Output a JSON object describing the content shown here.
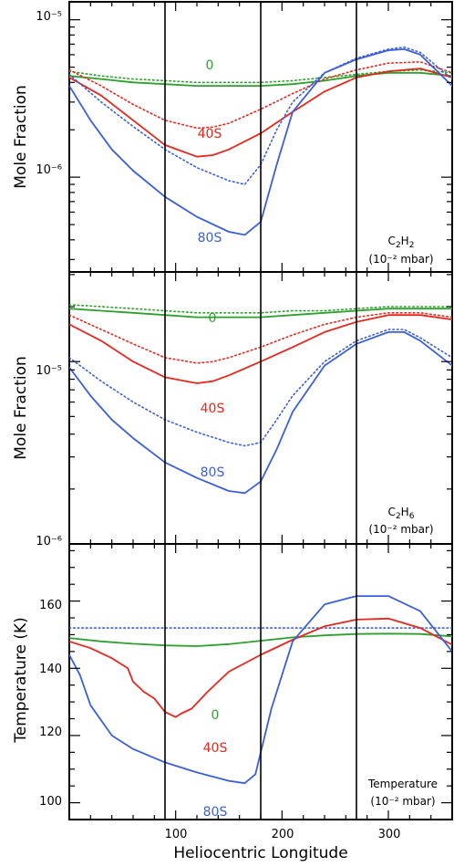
{
  "chart_data": [
    {
      "type": "line",
      "species_label": "C2H2",
      "note_main": "C",
      "note_sub1": "2",
      "note_mid": "H",
      "note_sub2": "2",
      "note_line2": "(10⁻² mbar)",
      "ylabel": "Mole Fraction",
      "yscale": "log",
      "ylim": [
        2.5e-07,
        1.3e-05
      ],
      "xlim": [
        0,
        360
      ],
      "yticks": [
        1e-06,
        1e-05
      ],
      "ytick_labels": [
        "10⁻⁶",
        "10⁻⁵"
      ],
      "series": [
        {
          "name": "0",
          "style": "solid",
          "color": "#2ca02c",
          "x": [
            0,
            30,
            60,
            90,
            120,
            150,
            180,
            210,
            240,
            270,
            300,
            330,
            360
          ],
          "values": [
            4.4e-06,
            4.2e-06,
            4e-06,
            3.9e-06,
            3.8e-06,
            3.8e-06,
            3.8e-06,
            3.9e-06,
            4.1e-06,
            4.4e-06,
            4.6e-06,
            4.6e-06,
            4.4e-06
          ]
        },
        {
          "name": "",
          "style": "dotted",
          "color": "#2ca02c",
          "x": [
            0,
            30,
            60,
            90,
            120,
            150,
            180,
            210,
            240,
            270,
            300,
            330,
            360
          ],
          "values": [
            4.7e-06,
            4.4e-06,
            4.2e-06,
            4.1e-06,
            4e-06,
            4e-06,
            4e-06,
            4.1e-06,
            4.3e-06,
            4.5e-06,
            4.7e-06,
            4.8e-06,
            4.6e-06
          ]
        },
        {
          "name": "40S",
          "style": "solid",
          "color": "#e8261c",
          "x": [
            0,
            30,
            60,
            90,
            120,
            135,
            150,
            180,
            210,
            240,
            270,
            300,
            330,
            360
          ],
          "values": [
            4.3e-06,
            3.3e-06,
            2.3e-06,
            1.6e-06,
            1.35e-06,
            1.38e-06,
            1.5e-06,
            1.9e-06,
            2.6e-06,
            3.5e-06,
            4.3e-06,
            4.7e-06,
            4.9e-06,
            4.3e-06
          ]
        },
        {
          "name": "",
          "style": "dotted",
          "color": "#e8261c",
          "x": [
            0,
            30,
            60,
            90,
            120,
            135,
            150,
            180,
            210,
            240,
            270,
            300,
            330,
            360
          ],
          "values": [
            4.8e-06,
            3.8e-06,
            2.9e-06,
            2.3e-06,
            2.05e-06,
            2.08e-06,
            2.2e-06,
            2.7e-06,
            3.4e-06,
            4.2e-06,
            4.8e-06,
            5.3e-06,
            5.4e-06,
            4.6e-06
          ]
        },
        {
          "name": "80S",
          "style": "solid",
          "color": "#3a5fdc",
          "x": [
            0,
            20,
            40,
            60,
            90,
            120,
            150,
            165,
            180,
            195,
            210,
            240,
            270,
            300,
            315,
            330,
            360
          ],
          "values": [
            3.8e-06,
            2.3e-06,
            1.5e-06,
            1.1e-06,
            7.5e-07,
            5.6e-07,
            4.5e-07,
            4.3e-07,
            5.2e-07,
            1.2e-06,
            2.6e-06,
            4.6e-06,
            5.6e-06,
            6.4e-06,
            6.5e-06,
            6e-06,
            3.8e-06
          ]
        },
        {
          "name": "",
          "style": "dotted",
          "color": "#3a5fdc",
          "x": [
            0,
            30,
            60,
            90,
            120,
            150,
            165,
            180,
            195,
            210,
            240,
            270,
            300,
            315,
            330,
            360
          ],
          "values": [
            4.5e-06,
            3e-06,
            2.1e-06,
            1.5e-06,
            1.15e-06,
            9.5e-07,
            9e-07,
            1.2e-06,
            2e-06,
            3e-06,
            4.6e-06,
            5.7e-06,
            6.5e-06,
            6.7e-06,
            6.2e-06,
            4.2e-06
          ]
        }
      ]
    },
    {
      "type": "line",
      "note_main": "C",
      "note_sub1": "2",
      "note_mid": "H",
      "note_sub2": "6",
      "note_line2": "(10⁻² mbar)",
      "ylabel": "Mole Fraction",
      "yscale": "log",
      "ylim": [
        1e-06,
        3.1e-05
      ],
      "xlim": [
        0,
        360
      ],
      "yticks": [
        1e-06,
        1e-05
      ],
      "ytick_labels": [
        "10⁻⁶",
        "10⁻⁵"
      ],
      "series": [
        {
          "name": "0",
          "style": "solid",
          "color": "#2ca02c",
          "x": [
            0,
            30,
            60,
            90,
            120,
            150,
            180,
            210,
            240,
            270,
            300,
            330,
            360
          ],
          "values": [
            1.95e-05,
            1.9e-05,
            1.85e-05,
            1.8e-05,
            1.75e-05,
            1.75e-05,
            1.75e-05,
            1.8e-05,
            1.85e-05,
            1.9e-05,
            1.95e-05,
            1.95e-05,
            1.95e-05
          ]
        },
        {
          "name": "",
          "style": "dotted",
          "color": "#2ca02c",
          "x": [
            0,
            30,
            60,
            90,
            120,
            150,
            180,
            210,
            240,
            270,
            300,
            330,
            360
          ],
          "values": [
            2.05e-05,
            2e-05,
            1.95e-05,
            1.9e-05,
            1.85e-05,
            1.85e-05,
            1.85e-05,
            1.9e-05,
            1.9e-05,
            1.95e-05,
            2e-05,
            2e-05,
            2e-05
          ]
        },
        {
          "name": "40S",
          "style": "solid",
          "color": "#e8261c",
          "x": [
            0,
            30,
            60,
            90,
            120,
            135,
            150,
            180,
            210,
            240,
            270,
            300,
            330,
            360
          ],
          "values": [
            1.6e-05,
            1.3e-05,
            1e-05,
            8.2e-06,
            7.6e-06,
            7.8e-06,
            8.4e-06,
            1e-05,
            1.2e-05,
            1.45e-05,
            1.65e-05,
            1.8e-05,
            1.8e-05,
            1.7e-05
          ]
        },
        {
          "name": "",
          "style": "dotted",
          "color": "#e8261c",
          "x": [
            0,
            30,
            60,
            90,
            120,
            135,
            150,
            180,
            210,
            240,
            270,
            300,
            330,
            360
          ],
          "values": [
            1.8e-05,
            1.5e-05,
            1.25e-05,
            1.05e-05,
            9.8e-06,
            1e-05,
            1.05e-05,
            1.2e-05,
            1.4e-05,
            1.6e-05,
            1.75e-05,
            1.85e-05,
            1.85e-05,
            1.75e-05
          ]
        },
        {
          "name": "80S",
          "style": "solid",
          "color": "#3a5fdc",
          "x": [
            0,
            20,
            40,
            60,
            90,
            120,
            150,
            165,
            180,
            195,
            210,
            240,
            270,
            300,
            315,
            330,
            360
          ],
          "values": [
            9.3e-06,
            6.5e-06,
            4.8e-06,
            3.8e-06,
            2.8e-06,
            2.3e-06,
            1.95e-06,
            1.9e-06,
            2.2e-06,
            3.3e-06,
            5.3e-06,
            9.5e-06,
            1.25e-05,
            1.45e-05,
            1.45e-05,
            1.3e-05,
            9.5e-06
          ]
        },
        {
          "name": "",
          "style": "dotted",
          "color": "#3a5fdc",
          "x": [
            0,
            30,
            60,
            90,
            120,
            150,
            165,
            180,
            195,
            210,
            240,
            270,
            300,
            315,
            330,
            360
          ],
          "values": [
            1.05e-05,
            7.8e-06,
            6e-06,
            4.8e-06,
            4.1e-06,
            3.6e-06,
            3.45e-06,
            3.6e-06,
            4.8e-06,
            6.5e-06,
            1e-05,
            1.3e-05,
            1.5e-05,
            1.5e-05,
            1.35e-05,
            1.05e-05
          ]
        }
      ]
    },
    {
      "type": "line",
      "note_line1": "Temperature",
      "note_line2": "(10⁻² mbar)",
      "ylabel": "Temperature (K)",
      "xlabel": "Heliocentric Longitude",
      "yscale": "linear",
      "ylim": [
        95,
        177
      ],
      "xlim": [
        0,
        360
      ],
      "yticks": [
        100,
        120,
        140,
        160
      ],
      "ytick_labels": [
        "100",
        "120",
        "140",
        "160"
      ],
      "xticks": [
        100,
        200,
        300
      ],
      "xtick_labels": [
        "100",
        "200",
        "300"
      ],
      "series": [
        {
          "name": "0",
          "style": "solid",
          "color": "#2ca02c",
          "x": [
            0,
            30,
            60,
            90,
            120,
            150,
            180,
            210,
            240,
            270,
            300,
            330,
            360
          ],
          "values": [
            149,
            148,
            147.3,
            146.8,
            146.6,
            147.2,
            148.2,
            149.2,
            149.8,
            150.2,
            150.3,
            150.2,
            149.5
          ]
        },
        {
          "name": "",
          "style": "dotted",
          "color": "#3a5fdc",
          "x": [
            0,
            360
          ],
          "values": [
            152,
            152
          ]
        },
        {
          "name": "40S",
          "style": "solid",
          "color": "#e8261c",
          "x": [
            0,
            20,
            40,
            55,
            60,
            70,
            80,
            90,
            100,
            105,
            115,
            130,
            150,
            180,
            210,
            240,
            270,
            300,
            330,
            360
          ],
          "values": [
            148,
            146,
            143,
            140,
            136,
            133,
            131,
            127,
            125.5,
            126.5,
            128,
            133,
            139,
            144,
            148.5,
            152.5,
            154.5,
            154.8,
            152,
            147
          ]
        },
        {
          "name": "80S",
          "style": "solid",
          "color": "#3a5fdc",
          "x": [
            0,
            10,
            20,
            40,
            60,
            90,
            120,
            150,
            165,
            175,
            190,
            210,
            240,
            270,
            300,
            330,
            360
          ],
          "values": [
            144,
            138,
            129,
            120,
            116,
            112,
            109,
            106.5,
            105.8,
            108.5,
            128,
            148,
            159,
            161.5,
            161.5,
            157,
            145
          ]
        }
      ]
    }
  ],
  "series_labels": {
    "p1_0": "0",
    "p1_40": "40S",
    "p1_80": "80S",
    "p2_0": "0",
    "p2_40": "40S",
    "p2_80": "80S",
    "p3_0": "0",
    "p3_40": "40S",
    "p3_80": "80S"
  },
  "vertical_lines": [
    90,
    180,
    270
  ],
  "colors": {
    "green": "#2ca02c",
    "red": "#e8261c",
    "blue": "#3a5fdc"
  }
}
